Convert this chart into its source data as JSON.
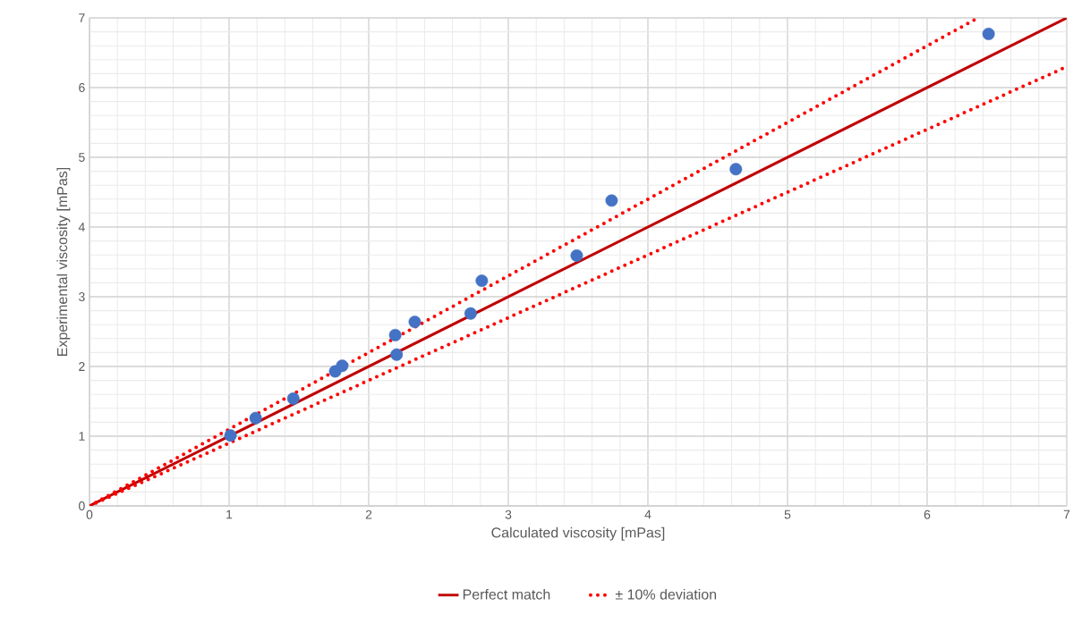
{
  "chart_data": {
    "type": "scatter",
    "xlabel": "Calculated viscosity [mPas]",
    "ylabel": "Experimental viscosity [mPas]",
    "xlim": [
      0,
      7
    ],
    "ylim": [
      0,
      7
    ],
    "xticks": [
      0,
      1,
      2,
      3,
      4,
      5,
      6,
      7
    ],
    "yticks": [
      0,
      1,
      2,
      3,
      4,
      5,
      6,
      7
    ],
    "grid": true,
    "legend": "bottom",
    "series": [
      {
        "color": "#4472c4",
        "marker": "circle",
        "x": [
          1.01,
          1.19,
          1.45,
          1.46,
          1.76,
          1.81,
          2.19,
          2.2,
          2.33,
          2.73,
          2.81,
          3.49,
          3.74,
          4.63,
          6.44
        ],
        "values": [
          1.01,
          1.26,
          null,
          1.54,
          1.93,
          2.01,
          2.45,
          2.17,
          2.64,
          2.76,
          3.23,
          3.59,
          4.38,
          4.83,
          6.77
        ]
      },
      {
        "type": "line",
        "name": "Perfect match",
        "color": "#c00000",
        "line_style": "solid",
        "marker": "none",
        "x": [
          0,
          7
        ],
        "values": [
          0,
          7
        ]
      },
      {
        "type": "line",
        "name": "± 10% deviation",
        "color": "#ff0000",
        "line_style": "dotted",
        "marker": "none",
        "x": [
          0,
          6.364
        ],
        "values": [
          0,
          7
        ]
      },
      {
        "type": "line",
        "color": "#ff0000",
        "line_style": "dotted",
        "marker": "none",
        "x": [
          0,
          7
        ],
        "values": [
          0,
          6.3
        ]
      }
    ]
  }
}
